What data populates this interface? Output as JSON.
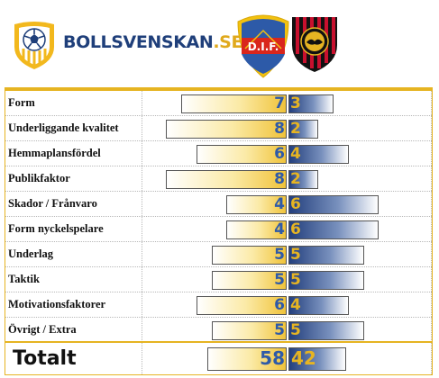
{
  "brand": {
    "name_main": "BOLLSVENSKAN",
    "name_tld": ".SE",
    "logo_icon": "football-shield-icon"
  },
  "teams": {
    "home": {
      "crest_icon": "djurgarden-crest-icon",
      "crest_text": "D.I.F.",
      "color": "#f0c33a"
    },
    "away": {
      "crest_icon": "brommapojkarna-crest-icon",
      "color": "#233f7d"
    }
  },
  "chart_data": {
    "type": "bar",
    "categories": [
      "Form",
      "Underliggande kvalitet",
      "Hemmaplansfördel",
      "Publikfaktor",
      "Skador / Frånvaro",
      "Form nyckelspelare",
      "Underlag",
      "Taktik",
      "Motivationsfaktorer",
      "Övrigt / Extra"
    ],
    "series": [
      {
        "values": [
          7,
          8,
          6,
          8,
          4,
          4,
          5,
          5,
          6,
          5
        ]
      },
      {
        "values": [
          3,
          2,
          4,
          2,
          6,
          6,
          5,
          5,
          4,
          5
        ]
      }
    ],
    "ylim": [
      0,
      10
    ]
  },
  "totals": {
    "label": "Totalt",
    "home": 58,
    "away": 42
  }
}
